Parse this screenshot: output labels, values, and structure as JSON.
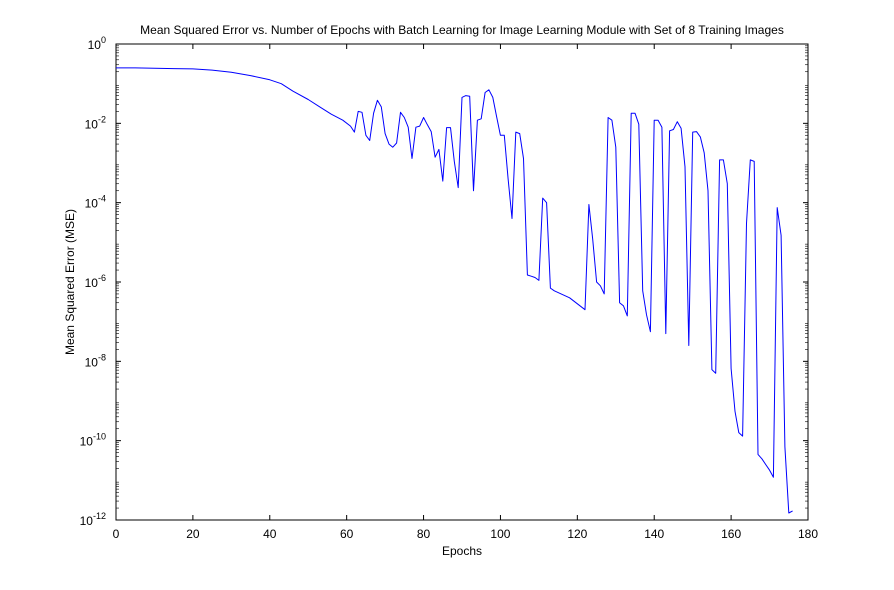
{
  "chart_data": {
    "type": "line",
    "title": "Mean Squared Error vs. Number of Epochs with Batch Learning for Image Learning Module with Set of 8 Training Images",
    "xlabel": "Epochs",
    "ylabel": "Mean Squared Error (MSE)",
    "xlim": [
      0,
      180
    ],
    "ylim_log10": [
      -12,
      0
    ],
    "yscale": "log",
    "grid": false,
    "legend": "none",
    "x_ticks": [
      "0",
      "20",
      "40",
      "60",
      "80",
      "100",
      "120",
      "140",
      "160",
      "180"
    ],
    "x_tick_values": [
      0,
      20,
      40,
      60,
      80,
      100,
      120,
      140,
      160,
      180
    ],
    "y_ticks": [
      {
        "base": "10",
        "exp": "0",
        "log10": 0
      },
      {
        "base": "10",
        "exp": "-2",
        "log10": -2
      },
      {
        "base": "10",
        "exp": "-4",
        "log10": -4
      },
      {
        "base": "10",
        "exp": "-6",
        "log10": -6
      },
      {
        "base": "10",
        "exp": "-8",
        "log10": -8
      },
      {
        "base": "10",
        "exp": "-10",
        "log10": -10
      },
      {
        "base": "10",
        "exp": "-12",
        "log10": -12
      }
    ],
    "series": [
      {
        "color": "#0000ff",
        "points": [
          [
            0,
            0.25
          ],
          [
            5,
            0.25
          ],
          [
            10,
            0.245
          ],
          [
            15,
            0.24
          ],
          [
            20,
            0.235
          ],
          [
            25,
            0.22
          ],
          [
            30,
            0.195
          ],
          [
            35,
            0.16
          ],
          [
            40,
            0.125
          ],
          [
            43,
            0.1
          ],
          [
            46,
            0.065
          ],
          [
            50,
            0.04
          ],
          [
            53,
            0.026
          ],
          [
            56,
            0.017
          ],
          [
            59,
            0.012
          ],
          [
            61,
            0.0085
          ],
          [
            62,
            0.006
          ],
          [
            63,
            0.02
          ],
          [
            64,
            0.019
          ],
          [
            65,
            0.005
          ],
          [
            66,
            0.0037
          ],
          [
            67,
            0.018
          ],
          [
            68,
            0.038
          ],
          [
            69,
            0.026
          ],
          [
            70,
            0.0055
          ],
          [
            71,
            0.003
          ],
          [
            72,
            0.0025
          ],
          [
            73,
            0.0032
          ],
          [
            74,
            0.019
          ],
          [
            75,
            0.014
          ],
          [
            76,
            0.008
          ],
          [
            77,
            0.0013
          ],
          [
            78,
            0.008
          ],
          [
            79,
            0.0085
          ],
          [
            80,
            0.014
          ],
          [
            81,
            0.0092
          ],
          [
            82,
            0.0062
          ],
          [
            83,
            0.0014
          ],
          [
            84,
            0.0022
          ],
          [
            85,
            0.00035
          ],
          [
            86,
            0.0078
          ],
          [
            87,
            0.0078
          ],
          [
            88,
            0.0011
          ],
          [
            89,
            0.00024
          ],
          [
            90,
            0.045
          ],
          [
            91,
            0.05
          ],
          [
            92,
            0.048
          ],
          [
            93,
            0.0002
          ],
          [
            94,
            0.012
          ],
          [
            95,
            0.013
          ],
          [
            96,
            0.06
          ],
          [
            97,
            0.07
          ],
          [
            98,
            0.045
          ],
          [
            99,
            0.0148
          ],
          [
            100,
            0.005
          ],
          [
            101,
            0.005
          ],
          [
            102,
            0.0004
          ],
          [
            103,
            4e-05
          ],
          [
            104,
            0.006
          ],
          [
            105,
            0.0055
          ],
          [
            106,
            0.0013
          ],
          [
            107,
            1.5e-06
          ],
          [
            108,
            1.4e-06
          ],
          [
            109,
            1.3e-06
          ],
          [
            110,
            1.1e-06
          ],
          [
            111,
            0.00013
          ],
          [
            112,
            0.0001
          ],
          [
            113,
            7e-07
          ],
          [
            114,
            6e-07
          ],
          [
            118,
            4e-07
          ],
          [
            122,
            2e-07
          ],
          [
            123,
            9e-05
          ],
          [
            124,
            1.2e-05
          ],
          [
            125,
            1e-06
          ],
          [
            126,
            8e-07
          ],
          [
            127,
            5e-07
          ],
          [
            128,
            0.014
          ],
          [
            129,
            0.012
          ],
          [
            130,
            0.0025
          ],
          [
            131,
            3e-07
          ],
          [
            132,
            2.5e-07
          ],
          [
            133,
            1.4e-07
          ],
          [
            134,
            0.018
          ],
          [
            135,
            0.018
          ],
          [
            136,
            0.0095
          ],
          [
            137,
            6e-07
          ],
          [
            138,
            1.5e-07
          ],
          [
            139,
            5.6e-08
          ],
          [
            140,
            0.012
          ],
          [
            141,
            0.012
          ],
          [
            142,
            0.008
          ],
          [
            143,
            5e-08
          ],
          [
            144,
            0.0065
          ],
          [
            145,
            0.007
          ],
          [
            146,
            0.011
          ],
          [
            147,
            0.0075
          ],
          [
            148,
            0.0008
          ],
          [
            149,
            2.5e-08
          ],
          [
            150,
            0.006
          ],
          [
            151,
            0.0062
          ],
          [
            152,
            0.0045
          ],
          [
            153,
            0.0018
          ],
          [
            154,
            0.0002
          ],
          [
            155,
            6.2e-09
          ],
          [
            156,
            5e-09
          ],
          [
            157,
            0.0012
          ],
          [
            158,
            0.0012
          ],
          [
            159,
            0.0003
          ],
          [
            160,
            6.6e-09
          ],
          [
            161,
            5.5e-10
          ],
          [
            162,
            1.6e-10
          ],
          [
            163,
            1.3e-10
          ],
          [
            164,
            3e-05
          ],
          [
            165,
            0.0012
          ],
          [
            166,
            0.0011
          ],
          [
            167,
            4.5e-11
          ],
          [
            168,
            3.5e-11
          ],
          [
            169,
            2.5e-11
          ],
          [
            170,
            1.8e-11
          ],
          [
            171,
            1.2e-11
          ],
          [
            172,
            7.5e-05
          ],
          [
            173,
            1.5e-05
          ],
          [
            174,
            7e-11
          ],
          [
            175,
            1.5e-12
          ],
          [
            176,
            1.7e-12
          ]
        ]
      }
    ]
  }
}
